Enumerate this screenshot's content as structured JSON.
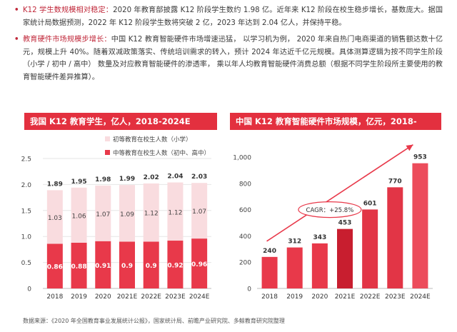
{
  "bullets": [
    {
      "head": "K12 学生数规模相对稳定：",
      "text": "2020 年教育部披露 K12 阶段学生数约 1.98 亿。近年来 K12 阶段在校生稳步增长，基数庞大。据国家统计局数据预测，2022 年 K12 阶段学生数将突破 2 亿，2023 年达到 2.04 亿人，并保持平稳。"
    },
    {
      "head": "教育硬件市场规模步增长：",
      "text": "中国 K12 教育智能硬件市场增速迅猛， 以学习机为例， 2020 年来自热门电商渠道的销售额达数十亿元，规模上升 40%。随着双减政策落实、传统培训需求的转入，预计 2024 年达近千亿元规模。具体测算逻辑为按不同学生阶段 （小学 / 初中 / 高中） 数量及对应教育智能硬件的渗透率， 乘以年人均教育智能硬件消费总额（根据不同学生阶段所主要使用的教育智能硬件差异推算）。"
    }
  ],
  "source": "数据来源：《2020 年全国教育事业发展统计公报》，国家统计局、前瞻产业研究院、多鲸教育研究院整理",
  "chart_data": [
    {
      "type": "bar",
      "title": "我国 K12 教育学生，亿人，2018-2024E",
      "categories": [
        "2018",
        "2019",
        "2020",
        "2021E",
        "2022E",
        "2023E",
        "2024E"
      ],
      "series": [
        {
          "name": "中等教育在校生人数（初中、高中）",
          "values": [
            0.86,
            0.88,
            0.91,
            0.9,
            0.9,
            0.92,
            0.96
          ],
          "color": "#e8394a"
        },
        {
          "name": "初等教育在校生人数（小学）",
          "values": [
            1.03,
            1.06,
            1.07,
            1.09,
            1.12,
            1.12,
            1.07
          ],
          "color": "#f9dcdf"
        }
      ],
      "totals": [
        "1.89",
        "1.95",
        "1.98",
        "1.99",
        "2.02",
        "2.04",
        "2.03"
      ],
      "ylim": [
        0,
        2.5
      ],
      "yticks": [
        "0",
        "0.5",
        "1.0",
        "1.5",
        "2.0",
        "2.5"
      ],
      "xlabel": "",
      "ylabel": "",
      "grid": true
    },
    {
      "type": "bar",
      "title": "中国 K12 教育智能硬件市场规模，亿元，2018-2024E",
      "categories": [
        "2018",
        "2019",
        "2020",
        "2021E",
        "2022E",
        "2023E",
        "2024E"
      ],
      "values": [
        240,
        312,
        343,
        453,
        601,
        770,
        953
      ],
      "colors": [
        "#e8394a",
        "#e8394a",
        "#e8394a",
        "#c81e2f",
        "#e23546",
        "#e23546",
        "#ec4c5b"
      ],
      "ylim": [
        0,
        1000
      ],
      "yticks": [
        "0",
        "200",
        "400",
        "600",
        "800",
        "1,000"
      ],
      "annotation": "CAGR：+25.8%",
      "xlabel": "",
      "ylabel": "",
      "grid": false
    }
  ]
}
